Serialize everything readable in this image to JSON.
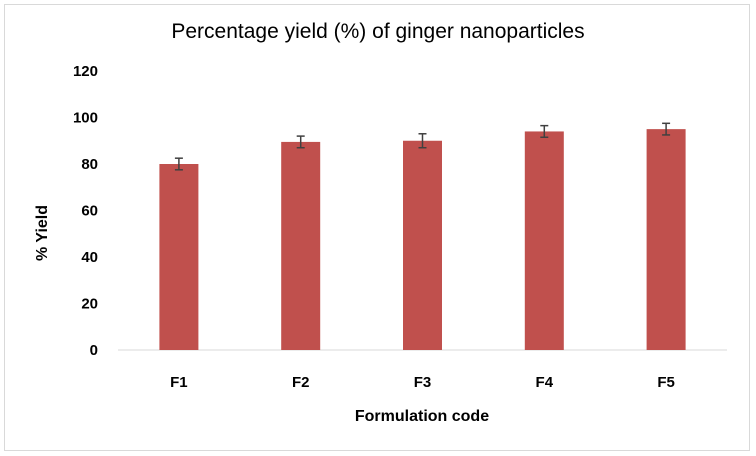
{
  "chart_data": {
    "type": "bar",
    "title": "Percentage yield (%) of ginger nanoparticles",
    "xlabel": "Formulation code",
    "ylabel": "% Yield",
    "categories": [
      "F1",
      "F2",
      "F3",
      "F4",
      "F5"
    ],
    "values": [
      80,
      89.5,
      90,
      94,
      95
    ],
    "error": [
      2.5,
      2.5,
      3,
      2.5,
      2.5
    ],
    "ylim": [
      0,
      120
    ],
    "yticks": [
      0,
      20,
      40,
      60,
      80,
      100,
      120
    ],
    "grid": false,
    "legend": "none",
    "bar_color": "#c0504d",
    "error_color": "#404040"
  }
}
